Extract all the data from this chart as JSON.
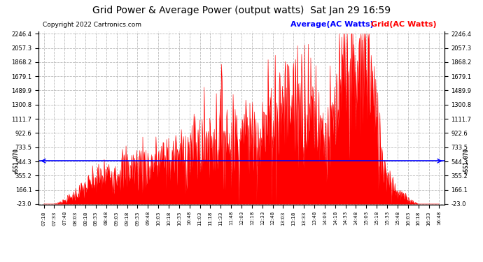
{
  "title": "Grid Power & Average Power (output watts)  Sat Jan 29 16:59",
  "copyright": "Copyright 2022 Cartronics.com",
  "legend_avg": "Average(AC Watts)",
  "legend_grid": "Grid(AC Watts)",
  "avg_label": "+551.070",
  "avg_value": 551.07,
  "ymin": -23.0,
  "ymax": 2246.4,
  "yticks": [
    -23.0,
    166.1,
    355.2,
    544.3,
    733.5,
    922.6,
    1111.7,
    1300.8,
    1489.9,
    1679.1,
    1868.2,
    2057.3,
    2246.4
  ],
  "background_color": "#ffffff",
  "grid_color": "#bbbbbb",
  "fill_color": "#ff0000",
  "avg_line_color": "#0000ff",
  "x_labels": [
    "07:18",
    "07:33",
    "07:48",
    "08:03",
    "08:18",
    "08:33",
    "08:48",
    "09:03",
    "09:18",
    "09:33",
    "09:48",
    "10:03",
    "10:18",
    "10:33",
    "10:48",
    "11:03",
    "11:18",
    "11:33",
    "11:48",
    "12:03",
    "12:18",
    "12:33",
    "12:48",
    "13:03",
    "13:18",
    "13:33",
    "13:48",
    "14:03",
    "14:18",
    "14:33",
    "14:48",
    "15:03",
    "15:18",
    "15:33",
    "15:48",
    "16:03",
    "16:18",
    "16:33",
    "16:48"
  ],
  "key_values": [
    -23,
    -23,
    20,
    100,
    200,
    290,
    360,
    410,
    450,
    480,
    510,
    540,
    580,
    630,
    690,
    730,
    790,
    950,
    880,
    860,
    900,
    1000,
    1120,
    1310,
    1360,
    1340,
    1290,
    850,
    1060,
    1840,
    1420,
    2246,
    910,
    370,
    130,
    40,
    -23,
    -23,
    -23
  ],
  "title_fontsize": 10,
  "copyright_fontsize": 6.5,
  "legend_fontsize": 8,
  "tick_fontsize": 6,
  "xtick_fontsize": 5
}
